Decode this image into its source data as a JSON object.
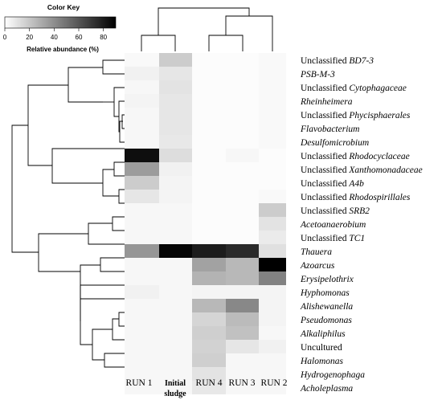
{
  "chart_data": {
    "type": "heatmap",
    "color_key": {
      "title": "Color Key",
      "ticks": [
        "0",
        "20",
        "40",
        "60",
        "80"
      ],
      "range": [
        0,
        90
      ],
      "label": "Relative abundance (%)"
    },
    "columns": [
      {
        "label": "RUN 1",
        "label2": "",
        "bold": false
      },
      {
        "label": "Initial",
        "label2": "sludge",
        "bold": true
      },
      {
        "label": "RUN 4",
        "label2": "",
        "bold": false
      },
      {
        "label": "RUN 3",
        "label2": "",
        "bold": false
      },
      {
        "label": "RUN 2",
        "label2": "",
        "bold": false
      }
    ],
    "rows": [
      {
        "prefix": "Unclassified ",
        "taxon": "BD7-3"
      },
      {
        "prefix": "",
        "taxon": "PSB-M-3"
      },
      {
        "prefix": "Unclassified ",
        "taxon": "Cytophagaceae"
      },
      {
        "prefix": "",
        "taxon": "Rheinheimera"
      },
      {
        "prefix": "Unclassified ",
        "taxon": "Phycisphaerales"
      },
      {
        "prefix": "",
        "taxon": "Flavobacterium"
      },
      {
        "prefix": "",
        "taxon": "Desulfomicrobium"
      },
      {
        "prefix": "Unclassified ",
        "taxon": "Rhodocyclaceae"
      },
      {
        "prefix": "Unclassified ",
        "taxon": "Xanthomonadaceae"
      },
      {
        "prefix": "Unclassified ",
        "taxon": "A4b"
      },
      {
        "prefix": "Unclassified ",
        "taxon": "Rhodospirillales"
      },
      {
        "prefix": "Unclassified ",
        "taxon": "SRB2"
      },
      {
        "prefix": "",
        "taxon": "Acetoanaerobium"
      },
      {
        "prefix": "Unclassified ",
        "taxon": "TC1"
      },
      {
        "prefix": "",
        "taxon": "Thauera"
      },
      {
        "prefix": "",
        "taxon": "Azoarcus"
      },
      {
        "prefix": "",
        "taxon": "Erysipelothrix"
      },
      {
        "prefix": "",
        "taxon": "Hyphomonas"
      },
      {
        "prefix": "",
        "taxon": "Alishewanella"
      },
      {
        "prefix": "",
        "taxon": "Pseudomonas"
      },
      {
        "prefix": "",
        "taxon": "Alkaliphilus"
      },
      {
        "prefix": "",
        "taxon": "Uncultured",
        "upright": true
      },
      {
        "prefix": "",
        "taxon": "Halomonas"
      },
      {
        "prefix": "",
        "taxon": "Hydrogenophaga"
      },
      {
        "prefix": "",
        "taxon": "Acholeplasma"
      }
    ],
    "values": [
      [
        2,
        18,
        1,
        1,
        2
      ],
      [
        5,
        9,
        1,
        1,
        2
      ],
      [
        3,
        10,
        1,
        1,
        2
      ],
      [
        4,
        9,
        1,
        1,
        2
      ],
      [
        3,
        9,
        1,
        1,
        2
      ],
      [
        3,
        9,
        1,
        1,
        2
      ],
      [
        3,
        8,
        1,
        1,
        2
      ],
      [
        85,
        12,
        1,
        3,
        1
      ],
      [
        35,
        5,
        1,
        1,
        1
      ],
      [
        18,
        4,
        1,
        1,
        1
      ],
      [
        9,
        4,
        1,
        1,
        2
      ],
      [
        3,
        3,
        1,
        1,
        18
      ],
      [
        3,
        3,
        1,
        1,
        10
      ],
      [
        3,
        3,
        1,
        1,
        7
      ],
      [
        37,
        88,
        80,
        75,
        11
      ],
      [
        3,
        3,
        33,
        25,
        90
      ],
      [
        3,
        3,
        27,
        25,
        44
      ],
      [
        5,
        3,
        4,
        4,
        4
      ],
      [
        3,
        3,
        25,
        42,
        4
      ],
      [
        3,
        3,
        15,
        24,
        4
      ],
      [
        3,
        3,
        17,
        22,
        3
      ],
      [
        3,
        3,
        16,
        9,
        5
      ],
      [
        3,
        3,
        17,
        3,
        3
      ],
      [
        3,
        3,
        10,
        3,
        3
      ],
      [
        3,
        3,
        8,
        3,
        3
      ]
    ]
  }
}
